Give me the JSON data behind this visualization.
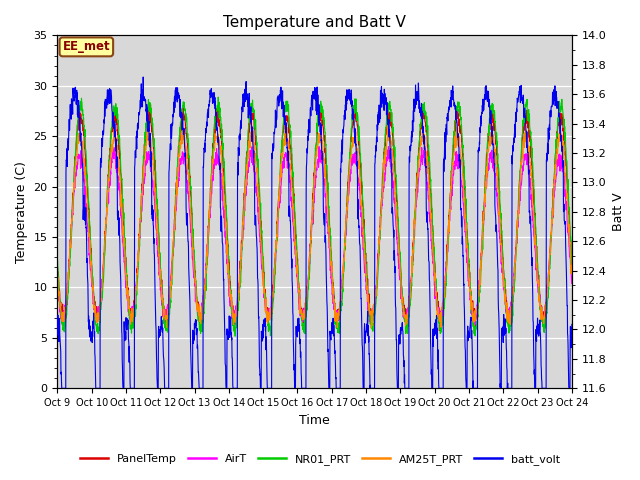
{
  "title": "Temperature and Batt V",
  "xlabel": "Time",
  "ylabel_left": "Temperature (C)",
  "ylabel_right": "Batt V",
  "ylim_left": [
    0,
    35
  ],
  "ylim_right": [
    11.6,
    14.0
  ],
  "xlim": [
    0,
    15
  ],
  "xtick_labels": [
    "Oct 9",
    "Oct 10",
    "Oct 11",
    "Oct 12",
    "Oct 13",
    "Oct 14",
    "Oct 15",
    "Oct 16",
    "Oct 17",
    "Oct 18",
    "Oct 19",
    "Oct 20",
    "Oct 21",
    "Oct 22",
    "Oct 23",
    "Oct 24"
  ],
  "legend_label": "EE_met",
  "series_labels": [
    "PanelTemp",
    "AirT",
    "NR01_PRT",
    "AM25T_PRT",
    "batt_volt"
  ],
  "series_colors": [
    "#dd0000",
    "#ff00ff",
    "#00cc00",
    "#ff8800",
    "#0000ee"
  ],
  "background_color": "#d8d8d8",
  "title_fontsize": 11,
  "axis_fontsize": 9,
  "tick_fontsize": 8,
  "legend_fontsize": 8
}
